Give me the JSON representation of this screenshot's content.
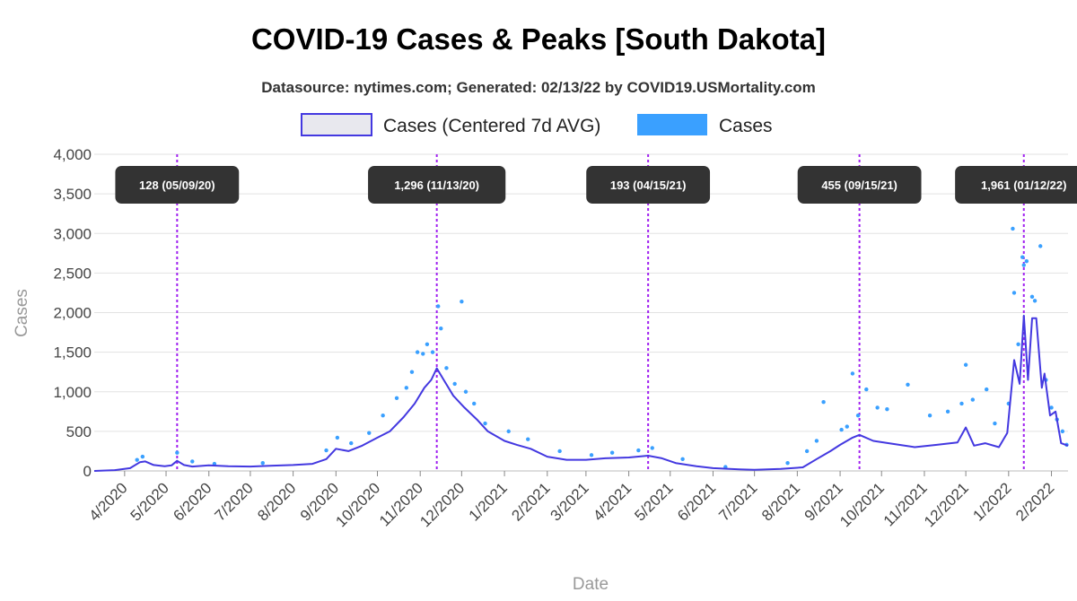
{
  "chart_data": {
    "type": "line",
    "title": "COVID-19 Cases & Peaks [South Dakota]",
    "subtitle": "Datasource: nytimes.com; Generated: 02/13/22 by COVID19.USMortality.com",
    "xlabel": "Date",
    "ylabel": "Cases",
    "ylim": [
      0,
      4000
    ],
    "yticks": [
      "0",
      "500",
      "1,000",
      "1,500",
      "2,000",
      "2,500",
      "3,000",
      "3,500",
      "4,000"
    ],
    "xlim": [
      "2020-03-10",
      "2022-02-13"
    ],
    "xticks": [
      {
        "date": "2020-04-01",
        "label": "4/2020"
      },
      {
        "date": "2020-05-01",
        "label": "5/2020"
      },
      {
        "date": "2020-06-01",
        "label": "6/2020"
      },
      {
        "date": "2020-07-01",
        "label": "7/2020"
      },
      {
        "date": "2020-08-01",
        "label": "8/2020"
      },
      {
        "date": "2020-09-01",
        "label": "9/2020"
      },
      {
        "date": "2020-10-01",
        "label": "10/2020"
      },
      {
        "date": "2020-11-01",
        "label": "11/2020"
      },
      {
        "date": "2020-12-01",
        "label": "12/2020"
      },
      {
        "date": "2021-01-01",
        "label": "1/2021"
      },
      {
        "date": "2021-02-01",
        "label": "2/2021"
      },
      {
        "date": "2021-03-01",
        "label": "3/2021"
      },
      {
        "date": "2021-04-01",
        "label": "4/2021"
      },
      {
        "date": "2021-05-01",
        "label": "5/2021"
      },
      {
        "date": "2021-06-01",
        "label": "6/2021"
      },
      {
        "date": "2021-07-01",
        "label": "7/2021"
      },
      {
        "date": "2021-08-01",
        "label": "8/2021"
      },
      {
        "date": "2021-09-01",
        "label": "9/2021"
      },
      {
        "date": "2021-10-01",
        "label": "10/2021"
      },
      {
        "date": "2021-11-01",
        "label": "11/2021"
      },
      {
        "date": "2021-12-01",
        "label": "12/2021"
      },
      {
        "date": "2022-01-01",
        "label": "1/2022"
      },
      {
        "date": "2022-02-01",
        "label": "2/2022"
      }
    ],
    "grid": true,
    "legend_position": "top",
    "series": [
      {
        "name": "Cases (Centered 7d AVG)",
        "kind": "line",
        "color": "#4338e0",
        "points": [
          [
            "2020-03-10",
            0
          ],
          [
            "2020-03-25",
            10
          ],
          [
            "2020-04-05",
            35
          ],
          [
            "2020-04-12",
            110
          ],
          [
            "2020-04-16",
            120
          ],
          [
            "2020-04-22",
            75
          ],
          [
            "2020-04-30",
            60
          ],
          [
            "2020-05-05",
            70
          ],
          [
            "2020-05-09",
            128
          ],
          [
            "2020-05-14",
            75
          ],
          [
            "2020-05-20",
            55
          ],
          [
            "2020-06-01",
            70
          ],
          [
            "2020-06-15",
            60
          ],
          [
            "2020-07-01",
            55
          ],
          [
            "2020-07-15",
            65
          ],
          [
            "2020-08-01",
            75
          ],
          [
            "2020-08-15",
            90
          ],
          [
            "2020-08-25",
            150
          ],
          [
            "2020-09-01",
            280
          ],
          [
            "2020-09-10",
            250
          ],
          [
            "2020-09-20",
            320
          ],
          [
            "2020-10-01",
            420
          ],
          [
            "2020-10-10",
            500
          ],
          [
            "2020-10-20",
            680
          ],
          [
            "2020-10-28",
            850
          ],
          [
            "2020-11-04",
            1050
          ],
          [
            "2020-11-09",
            1150
          ],
          [
            "2020-11-13",
            1296
          ],
          [
            "2020-11-18",
            1150
          ],
          [
            "2020-11-25",
            950
          ],
          [
            "2020-12-03",
            800
          ],
          [
            "2020-12-12",
            650
          ],
          [
            "2020-12-20",
            500
          ],
          [
            "2021-01-01",
            380
          ],
          [
            "2021-01-10",
            330
          ],
          [
            "2021-01-20",
            280
          ],
          [
            "2021-02-01",
            180
          ],
          [
            "2021-02-15",
            140
          ],
          [
            "2021-03-01",
            140
          ],
          [
            "2021-03-15",
            160
          ],
          [
            "2021-04-01",
            170
          ],
          [
            "2021-04-15",
            193
          ],
          [
            "2021-04-25",
            160
          ],
          [
            "2021-05-05",
            100
          ],
          [
            "2021-05-20",
            60
          ],
          [
            "2021-06-01",
            35
          ],
          [
            "2021-06-20",
            20
          ],
          [
            "2021-07-01",
            15
          ],
          [
            "2021-07-20",
            25
          ],
          [
            "2021-08-05",
            45
          ],
          [
            "2021-08-15",
            150
          ],
          [
            "2021-08-25",
            250
          ],
          [
            "2021-09-01",
            330
          ],
          [
            "2021-09-10",
            420
          ],
          [
            "2021-09-15",
            455
          ],
          [
            "2021-09-25",
            380
          ],
          [
            "2021-10-10",
            340
          ],
          [
            "2021-10-25",
            300
          ],
          [
            "2021-11-10",
            330
          ],
          [
            "2021-11-25",
            360
          ],
          [
            "2021-12-01",
            550
          ],
          [
            "2021-12-07",
            320
          ],
          [
            "2021-12-15",
            350
          ],
          [
            "2021-12-25",
            300
          ],
          [
            "2021-12-31",
            480
          ],
          [
            "2022-01-05",
            1400
          ],
          [
            "2022-01-09",
            1100
          ],
          [
            "2022-01-12",
            1961
          ],
          [
            "2022-01-15",
            1150
          ],
          [
            "2022-01-18",
            1930
          ],
          [
            "2022-01-21",
            1930
          ],
          [
            "2022-01-25",
            1050
          ],
          [
            "2022-01-27",
            1230
          ],
          [
            "2022-01-31",
            700
          ],
          [
            "2022-02-04",
            750
          ],
          [
            "2022-02-08",
            350
          ],
          [
            "2022-02-13",
            320
          ]
        ]
      },
      {
        "name": "Cases",
        "kind": "scatter",
        "color": "#3aa0ff",
        "points": [
          [
            "2020-04-10",
            140
          ],
          [
            "2020-04-14",
            180
          ],
          [
            "2020-05-09",
            230
          ],
          [
            "2020-05-20",
            120
          ],
          [
            "2020-06-05",
            90
          ],
          [
            "2020-07-10",
            100
          ],
          [
            "2020-08-25",
            260
          ],
          [
            "2020-09-02",
            420
          ],
          [
            "2020-09-12",
            350
          ],
          [
            "2020-09-25",
            480
          ],
          [
            "2020-10-05",
            700
          ],
          [
            "2020-10-15",
            920
          ],
          [
            "2020-10-22",
            1050
          ],
          [
            "2020-10-26",
            1250
          ],
          [
            "2020-10-30",
            1500
          ],
          [
            "2020-11-03",
            1480
          ],
          [
            "2020-11-06",
            1600
          ],
          [
            "2020-11-10",
            1500
          ],
          [
            "2020-11-14",
            2080
          ],
          [
            "2020-11-16",
            1800
          ],
          [
            "2020-11-20",
            1300
          ],
          [
            "2020-11-26",
            1100
          ],
          [
            "2020-12-01",
            2140
          ],
          [
            "2020-12-04",
            1000
          ],
          [
            "2020-12-10",
            850
          ],
          [
            "2020-12-18",
            600
          ],
          [
            "2021-01-04",
            500
          ],
          [
            "2021-01-18",
            400
          ],
          [
            "2021-02-10",
            250
          ],
          [
            "2021-03-05",
            200
          ],
          [
            "2021-03-20",
            230
          ],
          [
            "2021-04-08",
            260
          ],
          [
            "2021-04-18",
            290
          ],
          [
            "2021-05-10",
            150
          ],
          [
            "2021-06-10",
            50
          ],
          [
            "2021-07-25",
            100
          ],
          [
            "2021-08-08",
            250
          ],
          [
            "2021-08-15",
            380
          ],
          [
            "2021-08-20",
            870
          ],
          [
            "2021-09-02",
            520
          ],
          [
            "2021-09-06",
            560
          ],
          [
            "2021-09-10",
            1230
          ],
          [
            "2021-09-14",
            700
          ],
          [
            "2021-09-20",
            1030
          ],
          [
            "2021-09-28",
            800
          ],
          [
            "2021-10-05",
            780
          ],
          [
            "2021-10-20",
            1090
          ],
          [
            "2021-11-05",
            700
          ],
          [
            "2021-11-18",
            750
          ],
          [
            "2021-11-28",
            850
          ],
          [
            "2021-12-01",
            1340
          ],
          [
            "2021-12-06",
            900
          ],
          [
            "2021-12-16",
            1030
          ],
          [
            "2021-12-22",
            600
          ],
          [
            "2022-01-01",
            850
          ],
          [
            "2022-01-04",
            3060
          ],
          [
            "2022-01-05",
            2250
          ],
          [
            "2022-01-08",
            1600
          ],
          [
            "2022-01-11",
            2700
          ],
          [
            "2022-01-12",
            2600
          ],
          [
            "2022-01-14",
            2650
          ],
          [
            "2022-01-18",
            2200
          ],
          [
            "2022-01-20",
            2150
          ],
          [
            "2022-01-24",
            2840
          ],
          [
            "2022-01-28",
            1150
          ],
          [
            "2022-02-01",
            800
          ],
          [
            "2022-02-05",
            650
          ],
          [
            "2022-02-09",
            500
          ],
          [
            "2022-02-12",
            330
          ]
        ]
      }
    ],
    "peaks": [
      {
        "date": "2020-05-09",
        "value": 128,
        "label": "128 (05/09/20)"
      },
      {
        "date": "2020-11-13",
        "value": 1296,
        "label": "1,296 (11/13/20)"
      },
      {
        "date": "2021-04-15",
        "value": 193,
        "label": "193 (04/15/21)"
      },
      {
        "date": "2021-09-15",
        "value": 455,
        "label": "455 (09/15/21)"
      },
      {
        "date": "2022-01-12",
        "value": 1961,
        "label": "1,961 (01/12/22)"
      }
    ],
    "colors": {
      "avg_line": "#4338e0",
      "avg_legend_fill": "#e8e8ee",
      "points": "#3aa0ff",
      "peak_line": "#a020f0",
      "peak_label_bg": "#333333",
      "grid": "#e2e2e2"
    }
  }
}
